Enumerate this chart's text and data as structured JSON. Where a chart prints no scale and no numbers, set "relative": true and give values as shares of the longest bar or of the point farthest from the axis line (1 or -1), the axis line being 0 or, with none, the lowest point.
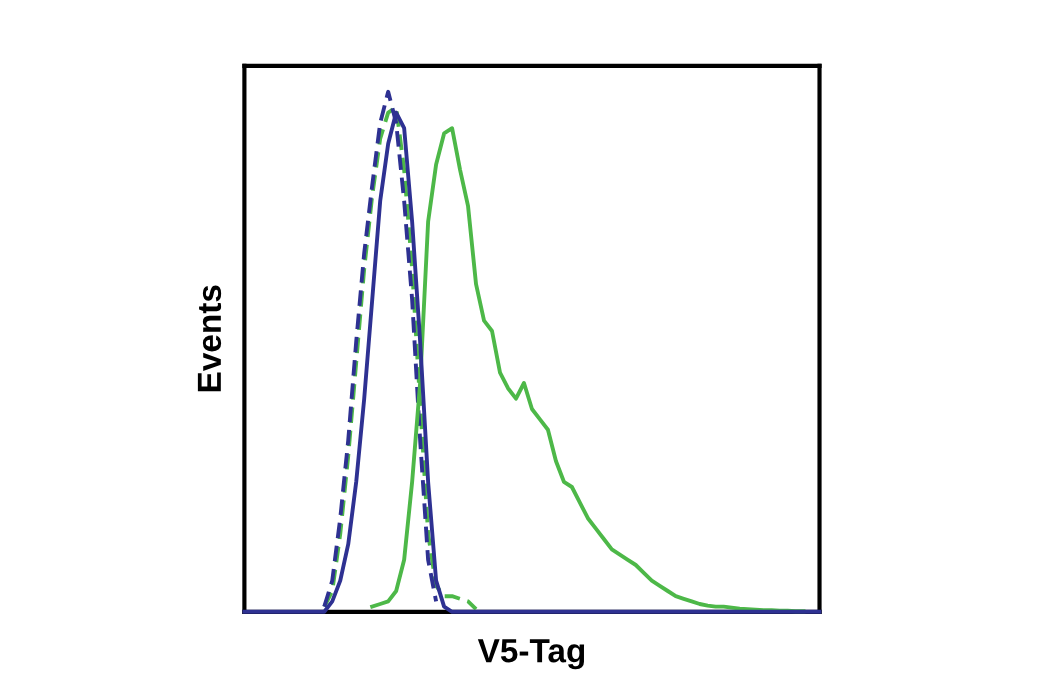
{
  "chart_data": {
    "type": "line",
    "relative": true,
    "xlabel": "V5-Tag",
    "ylabel": "Events",
    "legend": false,
    "grid": false,
    "marker": "none",
    "categories": [
      null,
      null,
      null,
      null,
      null,
      null,
      null,
      null,
      null,
      null,
      null,
      null,
      null,
      null,
      null,
      null,
      null,
      null,
      null,
      null,
      null,
      null,
      null,
      null,
      null,
      null,
      null,
      null,
      null,
      null,
      null,
      null,
      null,
      null,
      null,
      null,
      null,
      null,
      null,
      null,
      null,
      null,
      null,
      null,
      null,
      null,
      null,
      null,
      null,
      null,
      null,
      null,
      null,
      null,
      null,
      null,
      null,
      null,
      null,
      null,
      null,
      null,
      null,
      null,
      null,
      null,
      null,
      null,
      null,
      null,
      null,
      null,
      null
    ],
    "series": [
      {
        "color": "#4db848",
        "line_style": "dashed",
        "values": [
          null,
          null,
          null,
          null,
          null,
          null,
          null,
          null,
          null,
          null,
          0.01,
          0.04,
          0.15,
          0.3,
          0.48,
          0.66,
          0.8,
          0.91,
          0.96,
          0.97,
          0.85,
          0.66,
          0.4,
          0.15,
          0.05,
          0.03,
          0.03,
          0.025,
          0.02,
          0.005,
          null,
          null,
          null,
          null,
          null,
          null,
          null,
          null,
          null,
          null,
          null,
          null,
          null,
          null,
          null,
          null,
          null,
          null,
          null,
          null,
          null,
          null,
          null,
          null,
          null,
          null,
          null,
          null,
          null,
          null,
          null,
          null,
          null,
          null,
          null,
          null,
          null,
          null,
          null,
          null,
          null,
          null,
          null
        ]
      },
      {
        "color": "#2e3192",
        "line_style": "dashed",
        "values": [
          null,
          null,
          null,
          null,
          null,
          null,
          null,
          null,
          null,
          null,
          0.01,
          0.06,
          0.18,
          0.33,
          0.52,
          0.69,
          0.82,
          0.94,
          1.0,
          0.94,
          0.79,
          0.6,
          0.33,
          0.1,
          0.02,
          null,
          null,
          null,
          null,
          null,
          null,
          null,
          null,
          null,
          null,
          null,
          null,
          null,
          null,
          null,
          null,
          null,
          null,
          null,
          null,
          null,
          null,
          null,
          null,
          null,
          null,
          null,
          null,
          null,
          null,
          null,
          null,
          null,
          null,
          null,
          null,
          null,
          null,
          null,
          null,
          null,
          null,
          null,
          null,
          null,
          null,
          null,
          null
        ]
      },
      {
        "color": "#4db848",
        "line_style": "solid",
        "values": [
          null,
          null,
          null,
          null,
          null,
          null,
          null,
          null,
          null,
          null,
          null,
          null,
          null,
          null,
          null,
          null,
          0.01,
          0.015,
          0.02,
          0.04,
          0.1,
          0.25,
          0.44,
          0.75,
          0.86,
          0.92,
          0.93,
          0.85,
          0.78,
          0.63,
          0.56,
          0.54,
          0.46,
          0.43,
          0.41,
          0.44,
          0.39,
          0.37,
          0.35,
          0.29,
          0.25,
          0.24,
          0.21,
          0.18,
          0.16,
          0.14,
          0.12,
          0.11,
          0.1,
          0.09,
          0.075,
          0.06,
          0.05,
          0.04,
          0.03,
          0.025,
          0.02,
          0.015,
          0.012,
          0.01,
          0.01,
          0.008,
          0.006,
          0.005,
          0.004,
          0.003,
          0.003,
          0.002,
          0.002,
          0.001,
          0.001,
          null,
          null
        ]
      },
      {
        "color": "#2e3192",
        "line_style": "solid",
        "values": [
          0,
          0,
          0,
          0,
          0,
          0,
          0,
          0,
          0,
          0,
          0,
          0.02,
          0.06,
          0.13,
          0.25,
          0.41,
          0.6,
          0.79,
          0.9,
          0.96,
          0.93,
          0.75,
          0.52,
          0.25,
          0.06,
          0.01,
          0,
          0,
          0,
          0,
          0,
          0,
          0,
          0,
          0,
          0,
          0,
          0,
          0,
          0,
          0,
          0,
          0,
          0,
          0,
          0,
          0,
          0,
          0,
          0,
          0,
          0,
          0,
          0,
          0,
          0,
          0,
          0,
          0,
          0,
          0,
          0,
          0,
          0,
          0,
          0,
          0,
          0,
          0,
          0,
          0,
          0,
          0
        ]
      }
    ]
  }
}
